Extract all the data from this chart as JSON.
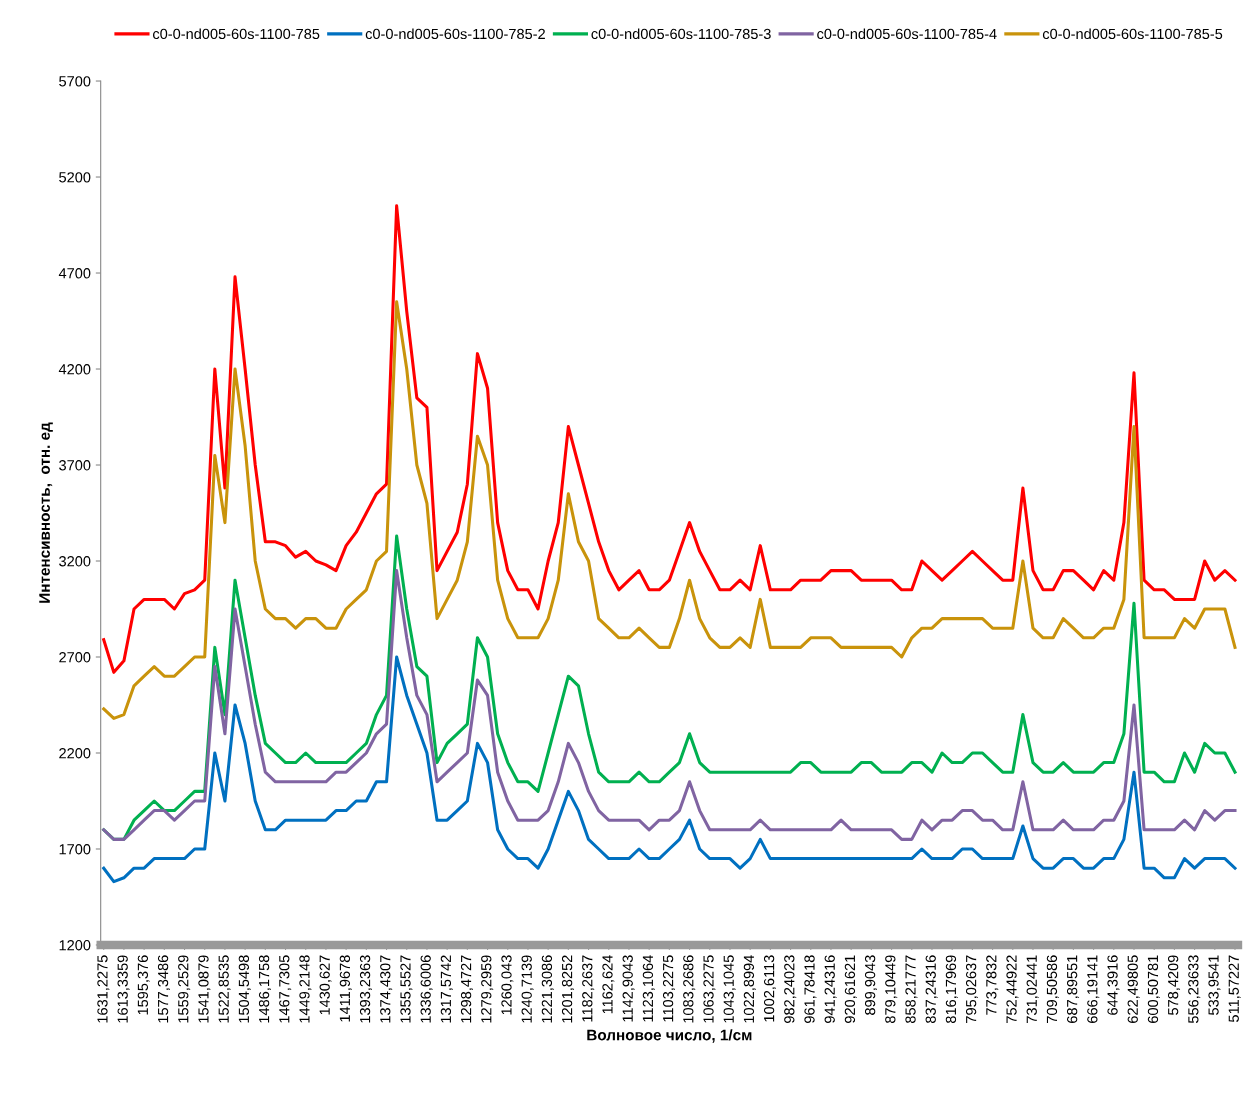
{
  "chart_data": {
    "type": "line",
    "xlabel": "Волновое число, 1/см",
    "ylabel": "Интенсивность,  отн. ед",
    "categories": [
      "1631,2275",
      null,
      "1613,3359",
      null,
      "1595,376",
      null,
      "1577,3486",
      null,
      "1559,2529",
      null,
      "1541,0879",
      null,
      "1522,8535",
      null,
      "1504,5498",
      null,
      "1486,1758",
      null,
      "1467,7305",
      null,
      "1449,2148",
      null,
      "1430,627",
      null,
      "1411,9678",
      null,
      "1393,2363",
      null,
      "1374,4307",
      null,
      "1355,5527",
      null,
      "1336,6006",
      null,
      "1317,5742",
      null,
      "1298,4727",
      null,
      "1279,2959",
      null,
      "1260,043",
      null,
      "1240,7139",
      null,
      "1221,3086",
      null,
      "1201,8252",
      null,
      "1182,2637",
      null,
      "1162,624",
      null,
      "1142,9043",
      null,
      "1123,1064",
      null,
      "1103,2275",
      null,
      "1083,2686",
      null,
      "1063,2275",
      null,
      "1043,1045",
      null,
      "1022,8994",
      null,
      "1002,6113",
      null,
      "982,24023",
      null,
      "961,78418",
      null,
      "941,24316",
      null,
      "920,61621",
      null,
      "899,9043",
      null,
      "879,10449",
      null,
      "858,21777",
      null,
      "837,24316",
      null,
      "816,17969",
      null,
      "795,02637",
      null,
      "773,7832",
      null,
      "752,44922",
      null,
      "731,02441",
      null,
      "709,50586",
      null,
      "687,89551",
      null,
      "666,19141",
      null,
      "644,3916",
      null,
      "622,49805",
      null,
      "600,50781",
      null,
      "578,4209",
      null,
      "556,23633",
      null,
      "533,9541",
      null,
      "511,57227"
    ],
    "series": [
      {
        "name": "c0-0-nd005-60s-1100-785",
        "color": "#ff0000",
        "values": [
          2790,
          2620,
          2680,
          2950,
          3000,
          3000,
          3000,
          2950,
          3030,
          3050,
          3100,
          4200,
          3580,
          4680,
          4200,
          3700,
          3300,
          3300,
          3280,
          3220,
          3250,
          3200,
          3180,
          3150,
          3280,
          3350,
          3450,
          3550,
          3600,
          5050,
          4500,
          4050,
          4000,
          3150,
          3250,
          3350,
          3600,
          4280,
          4100,
          3400,
          3150,
          3050,
          3050,
          2950,
          3200,
          3400,
          3900,
          3700,
          3500,
          3300,
          3150,
          3050,
          3100,
          3150,
          3050,
          3050,
          3100,
          3250,
          3400,
          3250,
          3150,
          3050,
          3050,
          3100,
          3050,
          3280,
          3050,
          3050,
          3050,
          3100,
          3100,
          3100,
          3150,
          3150,
          3150,
          3100,
          3100,
          3100,
          3100,
          3050,
          3050,
          3200,
          3150,
          3100,
          3150,
          3200,
          3250,
          3200,
          3150,
          3100,
          3100,
          3580,
          3150,
          3050,
          3050,
          3150,
          3150,
          3100,
          3050,
          3150,
          3100,
          3400,
          4180,
          3100,
          3050,
          3050,
          3000,
          3000,
          3000,
          3200,
          3100,
          3150,
          3100
        ]
      },
      {
        "name": "c0-0-nd005-60s-1100-785-2",
        "color": "#0070c0",
        "values": [
          1600,
          1530,
          1550,
          1600,
          1600,
          1650,
          1650,
          1650,
          1650,
          1700,
          1700,
          2200,
          1950,
          2450,
          2250,
          1950,
          1800,
          1800,
          1850,
          1850,
          1850,
          1850,
          1850,
          1900,
          1900,
          1950,
          1950,
          2050,
          2050,
          2700,
          2500,
          2350,
          2200,
          1850,
          1850,
          1900,
          1950,
          2250,
          2150,
          1800,
          1700,
          1650,
          1650,
          1600,
          1700,
          1850,
          2000,
          1900,
          1750,
          1700,
          1650,
          1650,
          1650,
          1700,
          1650,
          1650,
          1700,
          1750,
          1850,
          1700,
          1650,
          1650,
          1650,
          1600,
          1650,
          1750,
          1650,
          1650,
          1650,
          1650,
          1650,
          1650,
          1650,
          1650,
          1650,
          1650,
          1650,
          1650,
          1650,
          1650,
          1650,
          1700,
          1650,
          1650,
          1650,
          1700,
          1700,
          1650,
          1650,
          1650,
          1650,
          1820,
          1650,
          1600,
          1600,
          1650,
          1650,
          1600,
          1600,
          1650,
          1650,
          1750,
          2100,
          1600,
          1600,
          1550,
          1550,
          1650,
          1600,
          1650,
          1650,
          1650,
          1600
        ]
      },
      {
        "name": "c0-0-nd005-60s-1100-785-3",
        "color": "#00b050",
        "values": [
          1800,
          1750,
          1750,
          1850,
          1900,
          1950,
          1900,
          1900,
          1950,
          2000,
          2000,
          2750,
          2400,
          3100,
          2800,
          2500,
          2250,
          2200,
          2150,
          2150,
          2200,
          2150,
          2150,
          2150,
          2150,
          2200,
          2250,
          2400,
          2500,
          3330,
          2950,
          2650,
          2600,
          2150,
          2250,
          2300,
          2350,
          2800,
          2700,
          2300,
          2150,
          2050,
          2050,
          2000,
          2200,
          2400,
          2600,
          2550,
          2300,
          2100,
          2050,
          2050,
          2050,
          2100,
          2050,
          2050,
          2100,
          2150,
          2300,
          2150,
          2100,
          2100,
          2100,
          2100,
          2100,
          2100,
          2100,
          2100,
          2100,
          2150,
          2150,
          2100,
          2100,
          2100,
          2100,
          2150,
          2150,
          2100,
          2100,
          2100,
          2150,
          2150,
          2100,
          2200,
          2150,
          2150,
          2200,
          2200,
          2150,
          2100,
          2100,
          2400,
          2150,
          2100,
          2100,
          2150,
          2100,
          2100,
          2100,
          2150,
          2150,
          2300,
          2980,
          2100,
          2100,
          2050,
          2050,
          2200,
          2100,
          2250,
          2200,
          2200,
          2100
        ]
      },
      {
        "name": "c0-0-nd005-60s-1100-785-4",
        "color": "#8064a2",
        "values": [
          1800,
          1750,
          1750,
          1800,
          1850,
          1900,
          1900,
          1850,
          1900,
          1950,
          1950,
          2650,
          2300,
          2950,
          2650,
          2350,
          2100,
          2050,
          2050,
          2050,
          2050,
          2050,
          2050,
          2100,
          2100,
          2150,
          2200,
          2300,
          2350,
          3150,
          2800,
          2500,
          2400,
          2050,
          2100,
          2150,
          2200,
          2580,
          2500,
          2100,
          1950,
          1850,
          1850,
          1850,
          1900,
          2050,
          2250,
          2150,
          2000,
          1900,
          1850,
          1850,
          1850,
          1850,
          1800,
          1850,
          1850,
          1900,
          2050,
          1900,
          1800,
          1800,
          1800,
          1800,
          1800,
          1850,
          1800,
          1800,
          1800,
          1800,
          1800,
          1800,
          1800,
          1850,
          1800,
          1800,
          1800,
          1800,
          1800,
          1750,
          1750,
          1850,
          1800,
          1850,
          1850,
          1900,
          1900,
          1850,
          1850,
          1800,
          1800,
          2050,
          1800,
          1800,
          1800,
          1850,
          1800,
          1800,
          1800,
          1850,
          1850,
          1950,
          2450,
          1800,
          1800,
          1800,
          1800,
          1850,
          1800,
          1900,
          1850,
          1900,
          1900
        ]
      },
      {
        "name": "c0-0-nd005-60s-1100-785-5",
        "color": "#c9930b",
        "values": [
          2430,
          2380,
          2400,
          2550,
          2600,
          2650,
          2600,
          2600,
          2650,
          2700,
          2700,
          3750,
          3400,
          4200,
          3800,
          3200,
          2950,
          2900,
          2900,
          2850,
          2900,
          2900,
          2850,
          2850,
          2950,
          3000,
          3050,
          3200,
          3250,
          4550,
          4200,
          3700,
          3500,
          2900,
          3000,
          3100,
          3300,
          3850,
          3700,
          3100,
          2900,
          2800,
          2800,
          2800,
          2900,
          3100,
          3550,
          3300,
          3200,
          2900,
          2850,
          2800,
          2800,
          2850,
          2800,
          2750,
          2750,
          2900,
          3100,
          2900,
          2800,
          2750,
          2750,
          2800,
          2750,
          3000,
          2750,
          2750,
          2750,
          2750,
          2800,
          2800,
          2800,
          2750,
          2750,
          2750,
          2750,
          2750,
          2750,
          2700,
          2800,
          2850,
          2850,
          2900,
          2900,
          2900,
          2900,
          2900,
          2850,
          2850,
          2850,
          3200,
          2850,
          2800,
          2800,
          2900,
          2850,
          2800,
          2800,
          2850,
          2850,
          3000,
          3900,
          2800,
          2800,
          2800,
          2800,
          2900,
          2850,
          2950,
          2950,
          2950,
          2750
        ]
      }
    ],
    "ylim": [
      1200,
      5700
    ],
    "yticks": [
      1200,
      1700,
      2200,
      2700,
      3200,
      3700,
      4200,
      4700,
      5200,
      5700
    ],
    "grid": false,
    "legend": "top",
    "marker": "none",
    "line_style": "solid"
  }
}
